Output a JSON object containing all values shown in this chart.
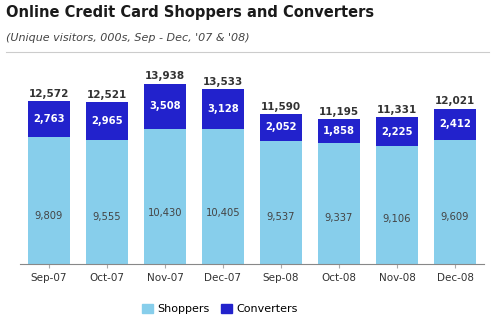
{
  "title": "Online Credit Card Shoppers and Converters",
  "subtitle": "(Unique visitors, 000s, Sep - Dec, '07 & '08)",
  "categories": [
    "Sep-07",
    "Oct-07",
    "Nov-07",
    "Dec-07",
    "Sep-08",
    "Oct-08",
    "Nov-08",
    "Dec-08"
  ],
  "shoppers": [
    9809,
    9555,
    10430,
    10405,
    9537,
    9337,
    9106,
    9609
  ],
  "converters": [
    2763,
    2965,
    3508,
    3128,
    2052,
    1858,
    2225,
    2412
  ],
  "totals": [
    12572,
    12521,
    13938,
    13533,
    11590,
    11195,
    11331,
    12021
  ],
  "shopper_color": "#87CEEB",
  "converter_color": "#2222CC",
  "background_color": "#FFFFFF",
  "title_fontsize": 10.5,
  "subtitle_fontsize": 8.0,
  "label_fontsize": 7.2,
  "total_fontsize": 7.5,
  "legend_fontsize": 8,
  "tick_fontsize": 7.5,
  "bar_width": 0.72,
  "ylim": [
    0,
    15500
  ],
  "shopper_label_color": "#444444",
  "total_label_color": "#333333"
}
